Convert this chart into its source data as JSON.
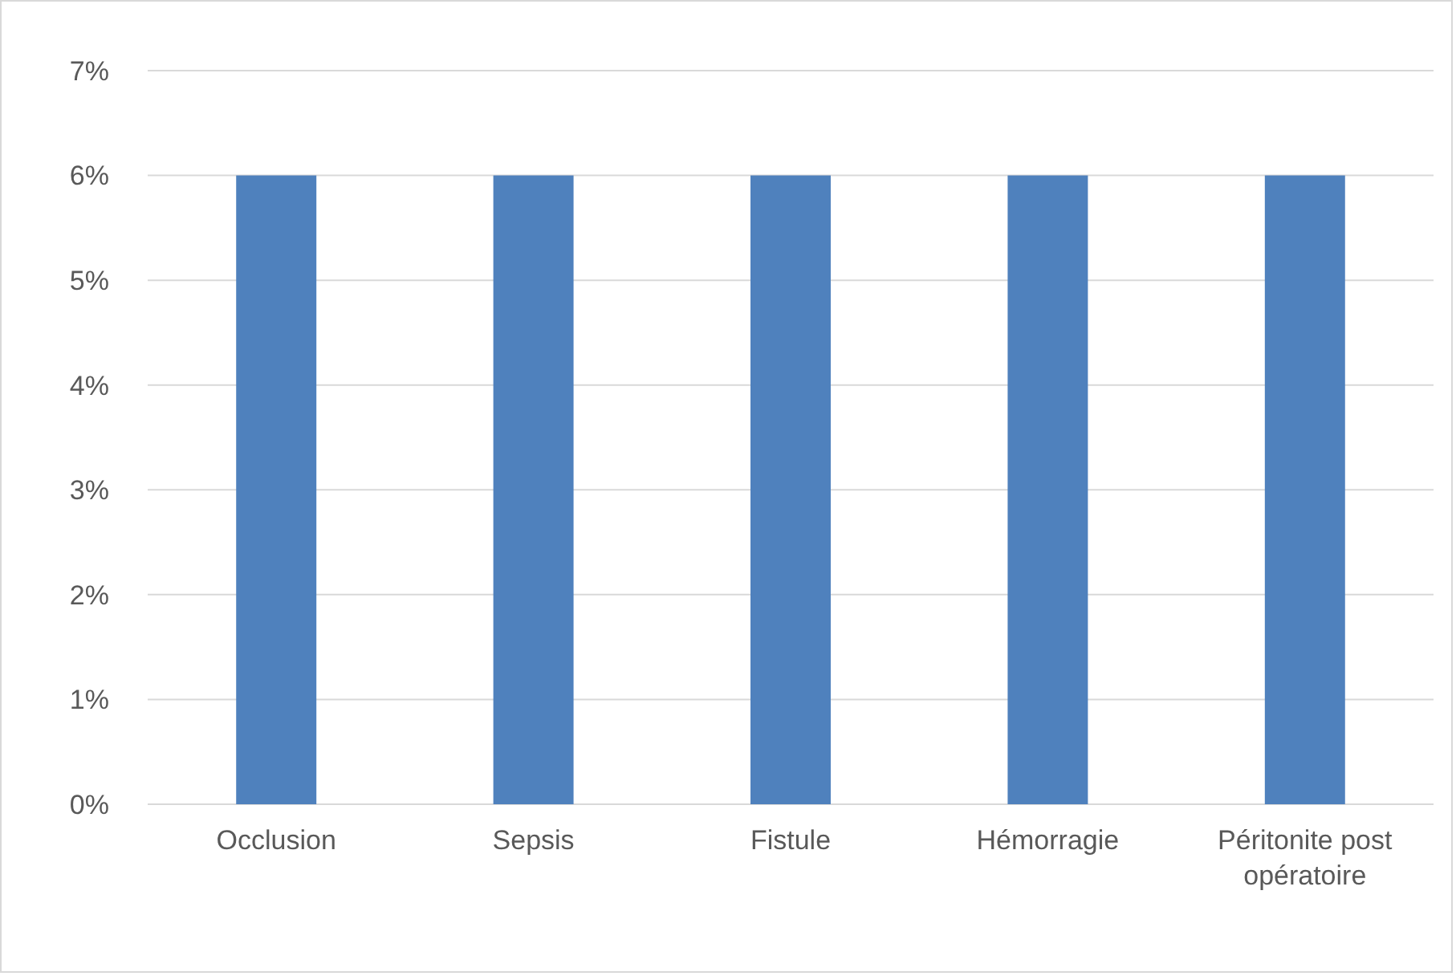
{
  "chart_data": {
    "type": "bar",
    "categories": [
      "Occlusion",
      "Sepsis",
      "Fistule",
      "Hémorragie",
      "Péritonite post opératoire"
    ],
    "values": [
      6,
      6,
      6,
      6,
      6
    ],
    "color": "#4f81bd",
    "ylim": [
      0,
      7
    ],
    "yticks": [
      {
        "value": 0,
        "label": "0%"
      },
      {
        "value": 1,
        "label": "1%"
      },
      {
        "value": 2,
        "label": "2%"
      },
      {
        "value": 3,
        "label": "3%"
      },
      {
        "value": 4,
        "label": "4%"
      },
      {
        "value": 5,
        "label": "5%"
      },
      {
        "value": 6,
        "label": "6%"
      },
      {
        "value": 7,
        "label": "7%"
      }
    ],
    "grid": "y"
  }
}
